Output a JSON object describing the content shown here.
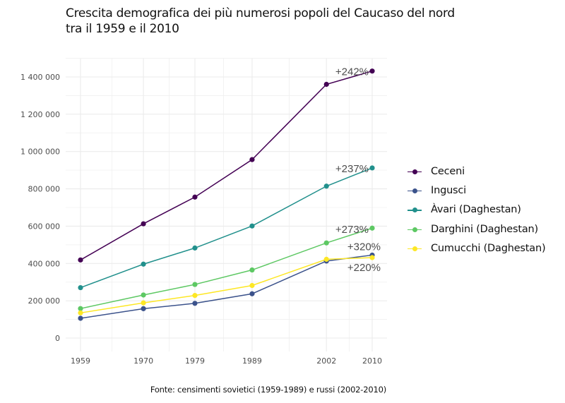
{
  "chart_data": {
    "type": "line",
    "title": "Crescita demografica dei più numerosi popoli del Caucaso del nord\ntra il 1959 e il 2010",
    "title_lines": [
      "Crescita demografica dei più numerosi popoli del Caucaso del nord",
      "tra il 1959 e il 2010"
    ],
    "caption": "Fonte: censimenti sovietici (1959-1989) e russi (2002-2010)",
    "xlabel": "",
    "ylabel": "",
    "x": [
      1959,
      1970,
      1979,
      1989,
      2002,
      2010
    ],
    "x_tick_labels": [
      "1959",
      "1970",
      "1979",
      "1989",
      "2002",
      "2010"
    ],
    "xlim": [
      1956.4,
      2011.6
    ],
    "ylim": [
      -71000,
      1500000
    ],
    "y_ticks": [
      0,
      200000,
      400000,
      600000,
      800000,
      1000000,
      1200000,
      1400000
    ],
    "y_tick_labels": [
      "0",
      "200 000",
      "400 000",
      "600 000",
      "800 000",
      "1 000 000",
      "1 200 000",
      "1 400 000"
    ],
    "grid": true,
    "legend_position": "right",
    "series": [
      {
        "name": "Ceceni",
        "color": "#440154",
        "values": [
          418756,
          612674,
          755782,
          956879,
          1360253,
          1431360
        ],
        "annotation": "+242%"
      },
      {
        "name": "Ingusci",
        "color": "#3b528b",
        "values": [
          106044,
          157605,
          186198,
          237438,
          413016,
          444833
        ],
        "annotation": "+320%"
      },
      {
        "name": "Àvari (Daghestan)",
        "color": "#21908c",
        "values": [
          270394,
          396297,
          482844,
          600989,
          814473,
          912090
        ],
        "annotation": "+237%"
      },
      {
        "name": "Darghini (Daghestan)",
        "color": "#5dc863",
        "values": [
          158149,
          230908,
          287282,
          365038,
          510156,
          589386
        ],
        "annotation": "+273%"
      },
      {
        "name": "Cumucchi (Daghestan)",
        "color": "#fde725",
        "values": [
          135036,
          188792,
          228418,
          281933,
          422409,
          431370
        ],
        "annotation": "+220%"
      }
    ]
  }
}
